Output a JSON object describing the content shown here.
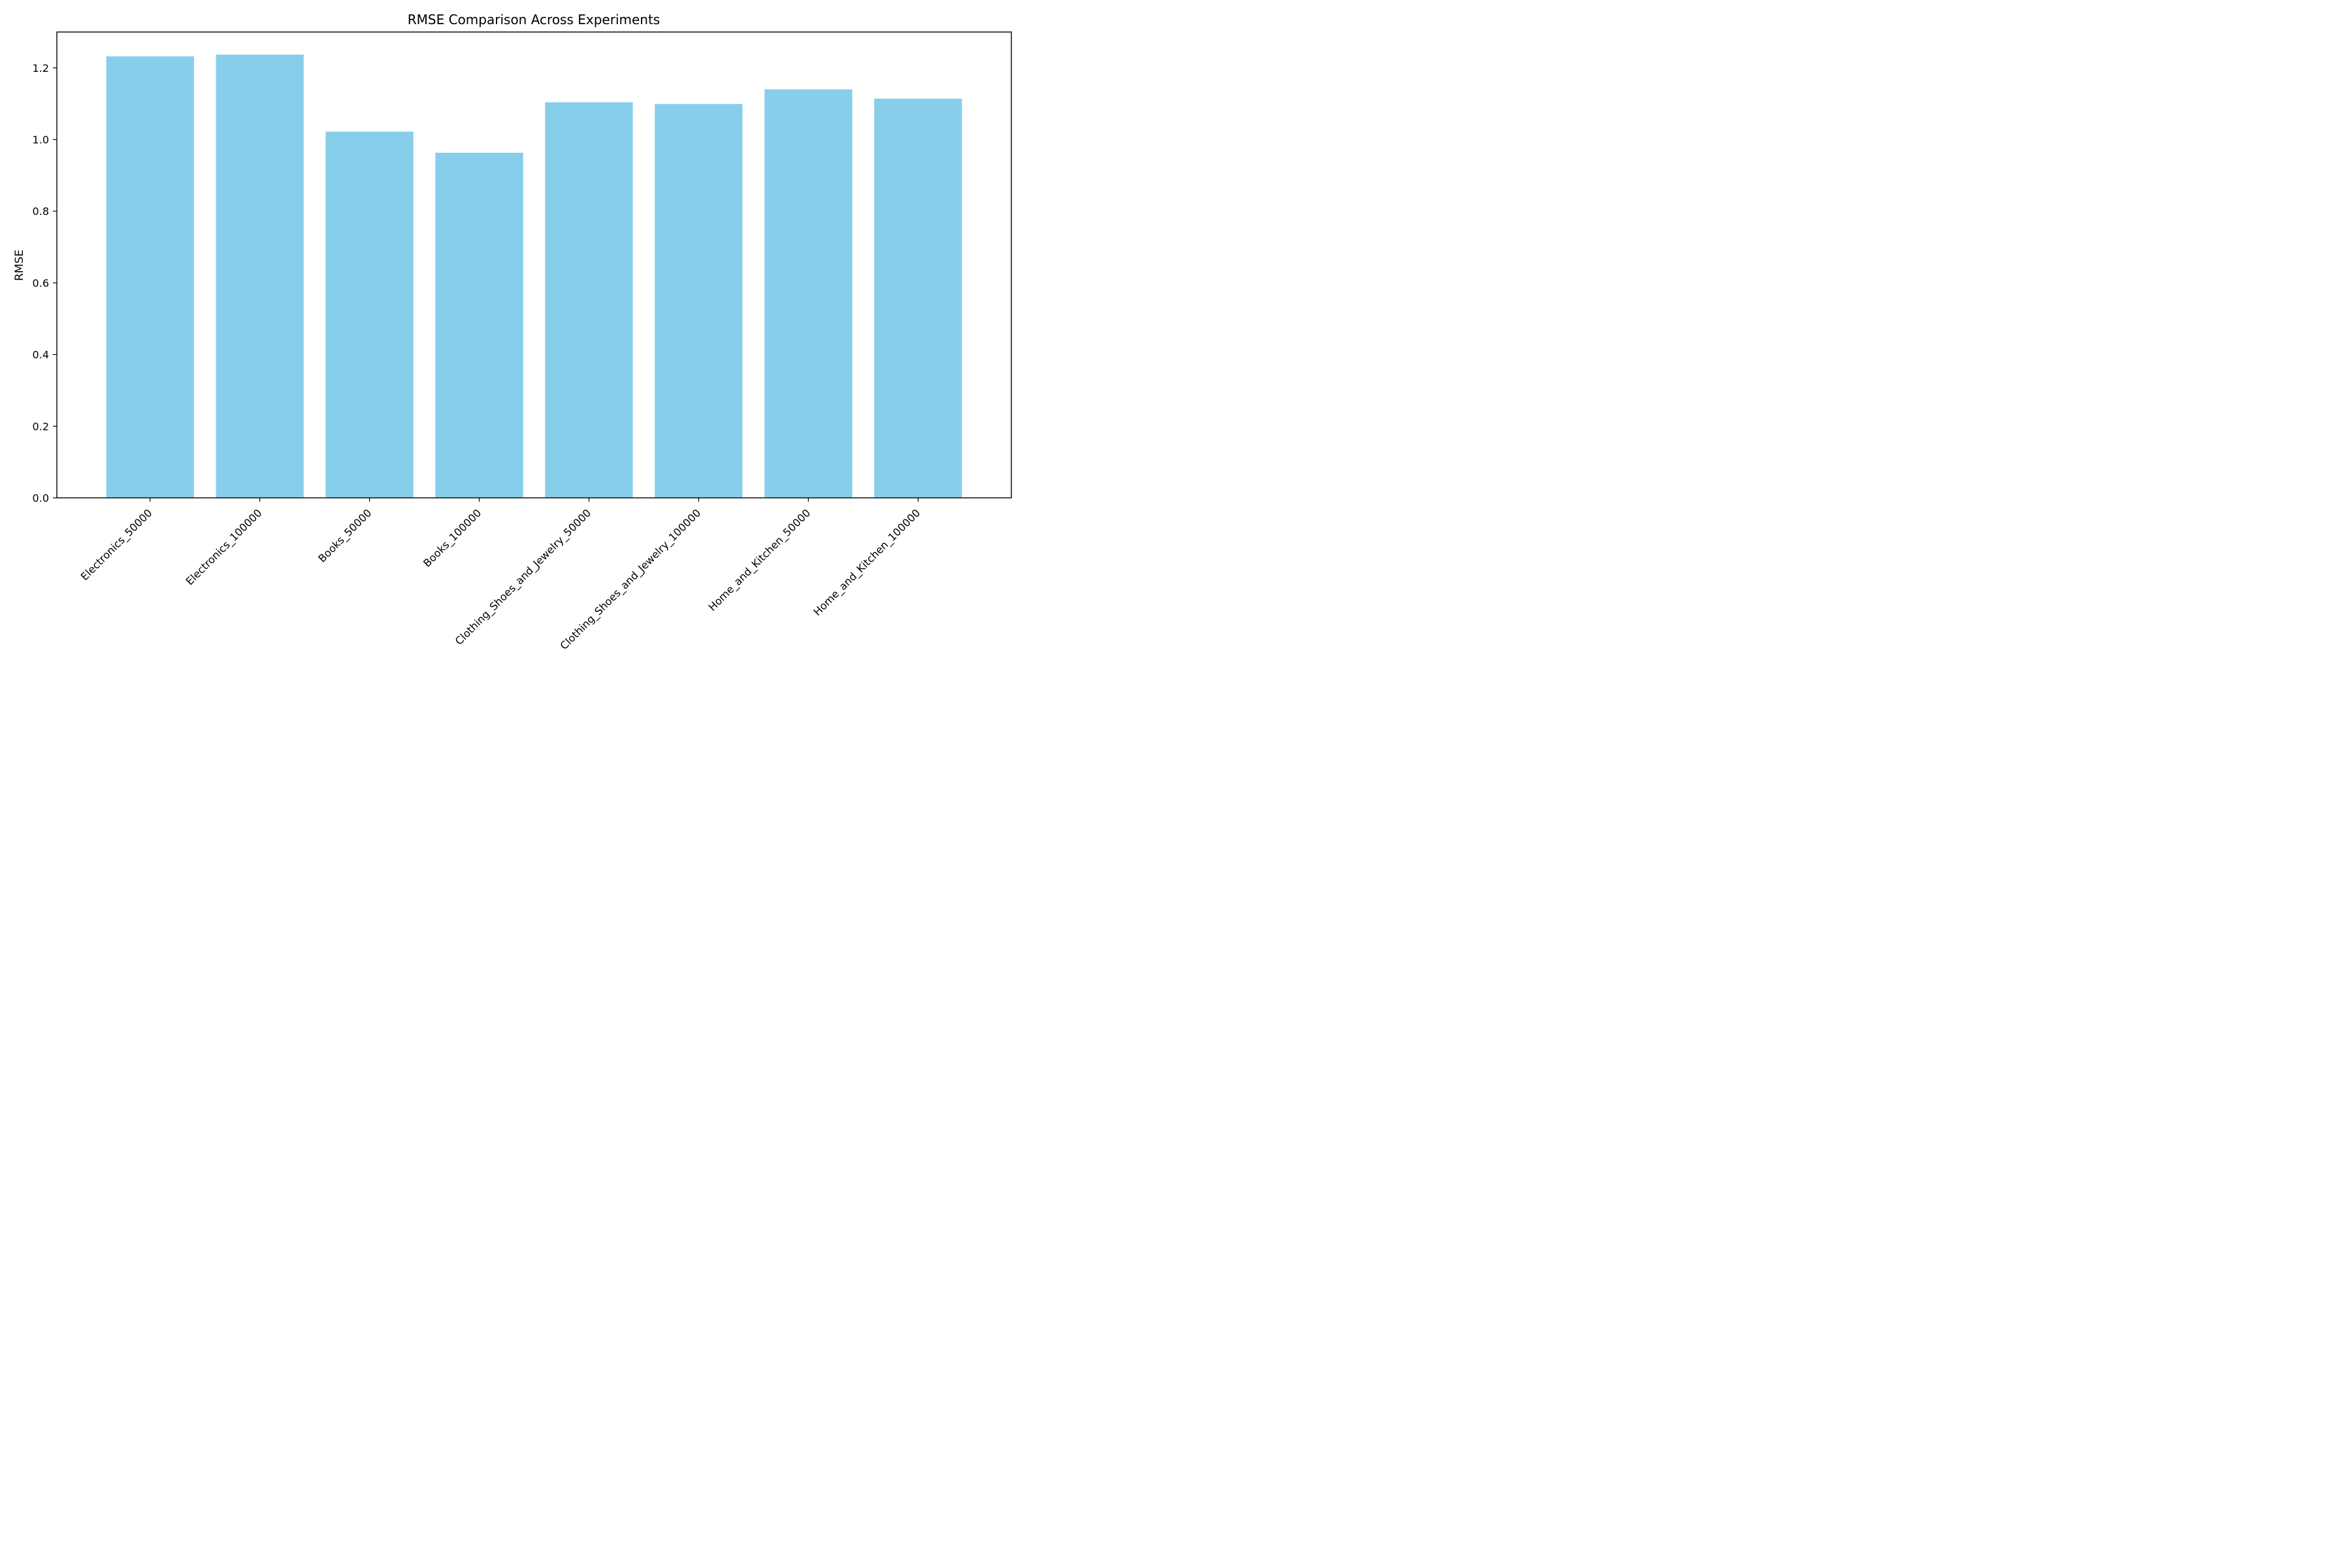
{
  "chart_data": {
    "type": "bar",
    "title": "RMSE Comparison Across Experiments",
    "xlabel": "",
    "ylabel": "RMSE",
    "categories": [
      "Electronics_50000",
      "Electronics_100000",
      "Books_50000",
      "Books_100000",
      "Clothing_Shoes_and_Jewelry_50000",
      "Clothing_Shoes_and_Jewelry_100000",
      "Home_and_Kitchen_50000",
      "Home_and_Kitchen_100000"
    ],
    "values": [
      1.232,
      1.237,
      1.022,
      0.963,
      1.104,
      1.099,
      1.14,
      1.114
    ],
    "ylim": [
      0,
      1.3
    ],
    "yticks": [
      0.0,
      0.2,
      0.4,
      0.6,
      0.8,
      1.0,
      1.2
    ],
    "ytick_labels": [
      "0.0",
      "0.2",
      "0.4",
      "0.6",
      "0.8",
      "1.0",
      "1.2"
    ],
    "bar_color": "#87ceeb",
    "grid": false,
    "legend": "none"
  }
}
